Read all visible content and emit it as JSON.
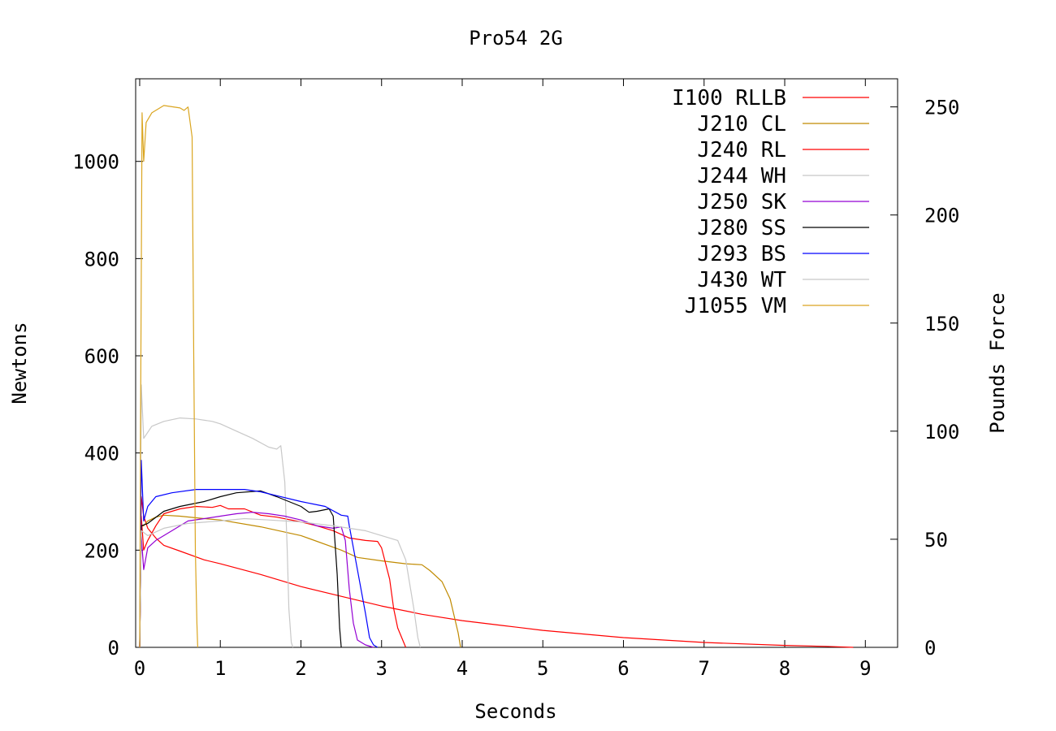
{
  "chart_data": {
    "type": "line",
    "title": "Pro54 2G",
    "xlabel": "Seconds",
    "ylabel": "Newtons",
    "y2label": "Pounds Force",
    "xlim": [
      -0.05,
      9.4
    ],
    "ylim": [
      0,
      1170
    ],
    "y2lim": [
      0,
      263.0
    ],
    "xticks": [
      "0",
      "1",
      "2",
      "3",
      "4",
      "5",
      "6",
      "7",
      "8",
      "9"
    ],
    "yticks": [
      "0",
      "200",
      "400",
      "600",
      "800",
      "1000"
    ],
    "y2ticks": [
      "0",
      "50",
      "100",
      "150",
      "200",
      "250"
    ],
    "grid": false,
    "legend_position": "top-right",
    "series": [
      {
        "name": "I100 RLLB",
        "color": "#ff0000",
        "points": [
          [
            0,
            0
          ],
          [
            0.02,
            310
          ],
          [
            0.05,
            270
          ],
          [
            0.1,
            245
          ],
          [
            0.2,
            225
          ],
          [
            0.3,
            210
          ],
          [
            0.5,
            198
          ],
          [
            0.8,
            180
          ],
          [
            1.0,
            172
          ],
          [
            1.5,
            150
          ],
          [
            2.0,
            125
          ],
          [
            2.5,
            105
          ],
          [
            3.0,
            85
          ],
          [
            3.5,
            68
          ],
          [
            4.0,
            55
          ],
          [
            4.5,
            45
          ],
          [
            5.0,
            35
          ],
          [
            6.0,
            20
          ],
          [
            7.0,
            10
          ],
          [
            8.0,
            4
          ],
          [
            8.5,
            2
          ],
          [
            8.85,
            0
          ]
        ]
      },
      {
        "name": "J210 CL",
        "color": "#c08a00",
        "points": [
          [
            0,
            0
          ],
          [
            0.02,
            250
          ],
          [
            0.05,
            250
          ],
          [
            0.1,
            260
          ],
          [
            0.2,
            268
          ],
          [
            0.3,
            272
          ],
          [
            0.5,
            270
          ],
          [
            0.8,
            265
          ],
          [
            1.0,
            262
          ],
          [
            1.5,
            248
          ],
          [
            2.0,
            230
          ],
          [
            2.5,
            200
          ],
          [
            2.7,
            185
          ],
          [
            3.0,
            178
          ],
          [
            3.3,
            172
          ],
          [
            3.5,
            170
          ],
          [
            3.6,
            158
          ],
          [
            3.75,
            135
          ],
          [
            3.85,
            100
          ],
          [
            3.95,
            30
          ],
          [
            3.98,
            0
          ]
        ]
      },
      {
        "name": "J240 RL",
        "color": "#ff0000",
        "points": [
          [
            0,
            0
          ],
          [
            0.02,
            270
          ],
          [
            0.05,
            200
          ],
          [
            0.1,
            220
          ],
          [
            0.2,
            250
          ],
          [
            0.3,
            275
          ],
          [
            0.5,
            285
          ],
          [
            0.7,
            290
          ],
          [
            0.9,
            288
          ],
          [
            1.0,
            292
          ],
          [
            1.1,
            285
          ],
          [
            1.3,
            285
          ],
          [
            1.5,
            272
          ],
          [
            1.7,
            268
          ],
          [
            2.0,
            258
          ],
          [
            2.2,
            250
          ],
          [
            2.4,
            240
          ],
          [
            2.6,
            225
          ],
          [
            2.8,
            220
          ],
          [
            2.95,
            218
          ],
          [
            3.0,
            205
          ],
          [
            3.1,
            140
          ],
          [
            3.15,
            80
          ],
          [
            3.2,
            40
          ],
          [
            3.3,
            0
          ]
        ]
      },
      {
        "name": "J244 WH",
        "color": "#c8c8c8",
        "points": [
          [
            0,
            0
          ],
          [
            0.02,
            540
          ],
          [
            0.05,
            430
          ],
          [
            0.15,
            455
          ],
          [
            0.3,
            465
          ],
          [
            0.5,
            472
          ],
          [
            0.7,
            470
          ],
          [
            0.9,
            465
          ],
          [
            1.0,
            460
          ],
          [
            1.2,
            445
          ],
          [
            1.4,
            430
          ],
          [
            1.6,
            412
          ],
          [
            1.7,
            408
          ],
          [
            1.75,
            415
          ],
          [
            1.8,
            340
          ],
          [
            1.83,
            200
          ],
          [
            1.85,
            80
          ],
          [
            1.88,
            10
          ],
          [
            1.9,
            0
          ]
        ]
      },
      {
        "name": "J250 SK",
        "color": "#9400d3",
        "points": [
          [
            0,
            0
          ],
          [
            0.02,
            230
          ],
          [
            0.05,
            160
          ],
          [
            0.1,
            205
          ],
          [
            0.2,
            220
          ],
          [
            0.4,
            240
          ],
          [
            0.6,
            260
          ],
          [
            0.8,
            265
          ],
          [
            1.0,
            270
          ],
          [
            1.2,
            275
          ],
          [
            1.4,
            278
          ],
          [
            1.6,
            275
          ],
          [
            1.8,
            270
          ],
          [
            2.0,
            262
          ],
          [
            2.2,
            250
          ],
          [
            2.4,
            245
          ],
          [
            2.5,
            248
          ],
          [
            2.55,
            220
          ],
          [
            2.6,
            120
          ],
          [
            2.65,
            50
          ],
          [
            2.7,
            15
          ],
          [
            2.8,
            5
          ],
          [
            2.9,
            0
          ]
        ]
      },
      {
        "name": "J280 SS",
        "color": "#000000",
        "points": [
          [
            0,
            0
          ],
          [
            0.02,
            250
          ],
          [
            0.1,
            255
          ],
          [
            0.3,
            280
          ],
          [
            0.5,
            290
          ],
          [
            0.8,
            300
          ],
          [
            1.0,
            310
          ],
          [
            1.2,
            318
          ],
          [
            1.5,
            322
          ],
          [
            1.7,
            310
          ],
          [
            2.0,
            290
          ],
          [
            2.1,
            278
          ],
          [
            2.2,
            280
          ],
          [
            2.35,
            285
          ],
          [
            2.4,
            270
          ],
          [
            2.45,
            150
          ],
          [
            2.48,
            40
          ],
          [
            2.5,
            0
          ]
        ]
      },
      {
        "name": "J293 BS",
        "color": "#0000ff",
        "points": [
          [
            0,
            0
          ],
          [
            0.02,
            385
          ],
          [
            0.05,
            260
          ],
          [
            0.1,
            290
          ],
          [
            0.2,
            310
          ],
          [
            0.4,
            318
          ],
          [
            0.7,
            325
          ],
          [
            1.0,
            325
          ],
          [
            1.3,
            325
          ],
          [
            1.5,
            320
          ],
          [
            1.7,
            312
          ],
          [
            2.0,
            300
          ],
          [
            2.3,
            290
          ],
          [
            2.5,
            272
          ],
          [
            2.58,
            270
          ],
          [
            2.6,
            250
          ],
          [
            2.7,
            160
          ],
          [
            2.8,
            70
          ],
          [
            2.85,
            20
          ],
          [
            2.9,
            5
          ],
          [
            2.95,
            0
          ]
        ]
      },
      {
        "name": "J430 WT",
        "color": "#c8c8c8",
        "points": [
          [
            0,
            0
          ],
          [
            0.02,
            240
          ],
          [
            0.1,
            230
          ],
          [
            0.3,
            245
          ],
          [
            0.6,
            255
          ],
          [
            1.0,
            260
          ],
          [
            1.3,
            265
          ],
          [
            1.6,
            262
          ],
          [
            2.0,
            258
          ],
          [
            2.4,
            250
          ],
          [
            2.8,
            240
          ],
          [
            3.0,
            230
          ],
          [
            3.2,
            220
          ],
          [
            3.3,
            180
          ],
          [
            3.4,
            80
          ],
          [
            3.45,
            20
          ],
          [
            3.48,
            0
          ]
        ]
      },
      {
        "name": "J1055 VM",
        "color": "#daa520",
        "points": [
          [
            0,
            0
          ],
          [
            0.01,
            450
          ],
          [
            0.03,
            1100
          ],
          [
            0.05,
            1000
          ],
          [
            0.08,
            1080
          ],
          [
            0.15,
            1100
          ],
          [
            0.3,
            1115
          ],
          [
            0.5,
            1110
          ],
          [
            0.55,
            1105
          ],
          [
            0.6,
            1112
          ],
          [
            0.65,
            1050
          ],
          [
            0.67,
            600
          ],
          [
            0.69,
            200
          ],
          [
            0.71,
            50
          ],
          [
            0.72,
            0
          ]
        ]
      }
    ]
  }
}
